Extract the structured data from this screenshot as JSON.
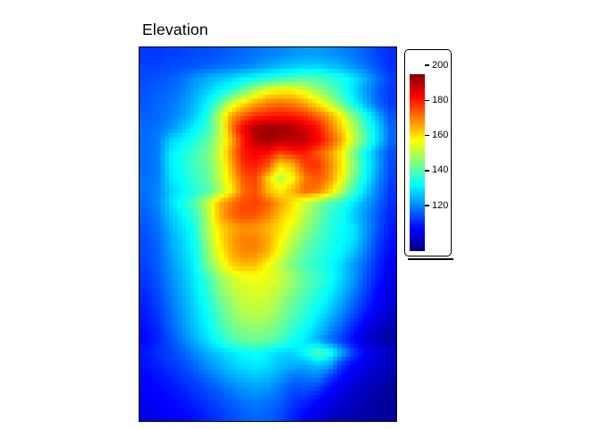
{
  "title": "Elevation",
  "chart_data": {
    "type": "heatmap",
    "title": "Elevation",
    "colormap": "jet",
    "colormap_anchors": [
      [
        0,
        0,
        0,
        128
      ],
      [
        0.125,
        0,
        0,
        255
      ],
      [
        0.375,
        0,
        255,
        255
      ],
      [
        0.5,
        128,
        255,
        128
      ],
      [
        0.625,
        255,
        255,
        0
      ],
      [
        0.875,
        255,
        0,
        0
      ],
      [
        1,
        128,
        0,
        0
      ]
    ],
    "zlim": [
      94,
      195
    ],
    "legend_ticks": [
      120,
      140,
      160,
      180,
      200
    ],
    "legend_position": "right",
    "grid_rows": 30,
    "grid_cols": 21,
    "render_rows": 87,
    "render_cols": 61,
    "grid": [
      [
        112,
        112,
        113,
        113,
        114,
        114,
        115,
        116,
        117,
        118,
        119,
        120,
        121,
        122,
        122,
        121,
        120,
        118,
        116,
        113,
        111
      ],
      [
        113,
        113,
        114,
        114,
        115,
        116,
        117,
        118,
        119,
        121,
        123,
        125,
        126,
        127,
        127,
        126,
        124,
        121,
        118,
        114,
        111
      ],
      [
        114,
        115,
        116,
        118,
        121,
        124,
        126,
        128,
        131,
        133,
        135,
        137,
        139,
        140,
        139,
        137,
        134,
        130,
        124,
        118,
        113
      ],
      [
        115,
        116,
        117,
        119,
        123,
        127,
        131,
        136,
        142,
        150,
        156,
        158,
        158,
        154,
        148,
        142,
        136,
        129,
        122,
        116,
        112
      ],
      [
        115,
        117,
        118,
        121,
        125,
        131,
        140,
        152,
        160,
        166,
        170,
        171,
        170,
        166,
        160,
        152,
        142,
        133,
        124,
        117,
        112
      ],
      [
        116,
        117,
        119,
        122,
        127,
        134,
        150,
        166,
        173,
        178,
        180,
        181,
        180,
        178,
        173,
        167,
        157,
        145,
        134,
        124,
        115
      ],
      [
        117,
        118,
        121,
        126,
        131,
        137,
        148,
        170,
        184,
        191,
        193,
        192,
        191,
        187,
        182,
        172,
        162,
        150,
        138,
        128,
        117
      ],
      [
        117,
        119,
        127,
        131,
        135,
        140,
        150,
        164,
        180,
        189,
        192,
        189,
        189,
        188,
        183,
        176,
        166,
        152,
        140,
        128,
        117
      ],
      [
        117,
        119,
        130,
        134,
        138,
        143,
        152,
        168,
        180,
        183,
        181,
        175,
        178,
        180,
        174,
        168,
        158,
        144,
        132,
        122,
        114
      ],
      [
        117,
        119,
        130,
        134,
        138,
        142,
        150,
        165,
        178,
        180,
        174,
        160,
        164,
        176,
        178,
        170,
        160,
        146,
        133,
        123,
        114
      ],
      [
        118,
        119,
        129,
        133,
        137,
        141,
        150,
        162,
        174,
        176,
        162,
        150,
        157,
        170,
        174,
        169,
        157,
        143,
        132,
        121,
        113
      ],
      [
        118,
        120,
        127,
        131,
        135,
        139,
        147,
        158,
        172,
        175,
        164,
        158,
        164,
        172,
        171,
        163,
        150,
        139,
        128,
        119,
        112
      ],
      [
        117,
        120,
        128,
        134,
        140,
        150,
        164,
        171,
        175,
        176,
        173,
        166,
        160,
        152,
        146,
        140,
        136,
        130,
        123,
        117,
        111
      ],
      [
        116,
        119,
        126,
        131,
        137,
        148,
        164,
        172,
        175,
        174,
        170,
        163,
        158,
        150,
        144,
        137,
        133,
        127,
        121,
        115,
        110
      ],
      [
        115,
        118,
        124,
        129,
        134,
        148,
        160,
        165,
        168,
        167,
        164,
        160,
        154,
        147,
        141,
        136,
        133,
        130,
        122,
        115,
        109
      ],
      [
        114,
        117,
        123,
        128,
        133,
        146,
        158,
        166,
        170,
        170,
        166,
        158,
        150,
        144,
        139,
        135,
        132,
        129,
        121,
        113,
        108
      ],
      [
        114,
        116,
        122,
        127,
        132,
        144,
        156,
        165,
        169,
        169,
        164,
        155,
        147,
        141,
        137,
        134,
        131,
        126,
        119,
        112,
        107
      ],
      [
        113,
        116,
        121,
        126,
        131,
        143,
        152,
        161,
        164,
        163,
        157,
        150,
        144,
        139,
        136,
        133,
        128,
        122,
        116,
        110,
        106
      ],
      [
        112,
        115,
        120,
        125,
        130,
        137,
        146,
        152,
        155,
        156,
        155,
        152,
        147,
        142,
        138,
        134,
        128,
        122,
        115,
        109,
        105
      ],
      [
        111,
        114,
        119,
        124,
        129,
        136,
        144,
        150,
        153,
        154,
        153,
        150,
        145,
        140,
        136,
        132,
        126,
        120,
        113,
        107,
        104
      ],
      [
        110,
        113,
        118,
        123,
        128,
        134,
        141,
        147,
        151,
        152,
        151,
        147,
        142,
        138,
        134,
        129,
        123,
        117,
        111,
        106,
        103
      ],
      [
        109,
        112,
        117,
        122,
        127,
        132,
        139,
        145,
        149,
        150,
        149,
        145,
        140,
        136,
        131,
        126,
        120,
        114,
        108,
        104,
        101
      ],
      [
        108,
        111,
        116,
        121,
        126,
        131,
        137,
        142,
        145,
        146,
        145,
        142,
        137,
        133,
        128,
        122,
        116,
        110,
        105,
        101,
        99
      ],
      [
        107,
        110,
        114,
        119,
        124,
        129,
        134,
        139,
        142,
        143,
        142,
        139,
        134,
        130,
        124,
        118,
        112,
        107,
        102,
        99,
        97
      ],
      [
        109,
        111,
        113,
        116,
        120,
        124,
        127,
        130,
        132,
        133,
        131,
        128,
        128,
        132,
        140,
        136,
        124,
        113,
        106,
        103,
        101
      ],
      [
        108,
        110,
        112,
        114,
        117,
        121,
        124,
        127,
        129,
        130,
        129,
        126,
        124,
        124,
        126,
        124,
        112,
        107,
        104,
        102,
        100
      ],
      [
        107,
        108,
        110,
        112,
        114,
        117,
        120,
        123,
        125,
        126,
        125,
        122,
        118,
        118,
        120,
        113,
        107,
        104,
        102,
        100,
        98
      ],
      [
        106,
        107,
        108,
        110,
        112,
        114,
        116,
        119,
        121,
        122,
        121,
        118,
        114,
        114,
        112,
        107,
        104,
        102,
        100,
        98,
        97
      ],
      [
        105,
        106,
        107,
        108,
        110,
        112,
        114,
        116,
        118,
        119,
        118,
        116,
        112,
        110,
        107,
        104,
        102,
        100,
        98,
        97,
        96
      ],
      [
        104,
        105,
        106,
        107,
        108,
        110,
        112,
        114,
        116,
        117,
        116,
        114,
        110,
        107,
        104,
        101,
        100,
        99,
        98,
        97,
        97
      ]
    ]
  }
}
